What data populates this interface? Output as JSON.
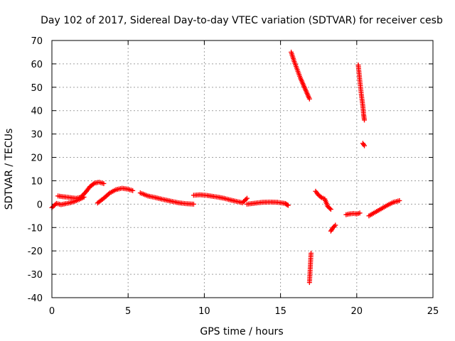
{
  "chart_data": {
    "type": "scatter",
    "title": "Day 102 of 2017, Sidereal Day-to-day VTEC variation (SDTVAR) for receiver cesb",
    "xlabel": "GPS time / hours",
    "ylabel": "SDTVAR / TECUs",
    "xlim": [
      0,
      25
    ],
    "ylim": [
      -40,
      70
    ],
    "x_ticks": [
      0,
      5,
      10,
      15,
      20,
      25
    ],
    "y_ticks": [
      -40,
      -30,
      -20,
      -10,
      0,
      10,
      20,
      30,
      40,
      50,
      60,
      70
    ],
    "grid": true,
    "marker": "plus",
    "color": "#ff0000",
    "segments": [
      {
        "name": "arc-a",
        "x": [
          0.0,
          0.3,
          0.6,
          0.9,
          1.2,
          1.5,
          1.8,
          2.1
        ],
        "y": [
          -1.5,
          0.3,
          -0.2,
          0.2,
          0.6,
          1.2,
          2.0,
          3.0
        ]
      },
      {
        "name": "arc-b",
        "x": [
          0.4,
          0.7,
          1.0,
          1.3,
          1.6,
          1.9,
          2.2,
          2.5,
          2.8,
          3.1,
          3.4
        ],
        "y": [
          3.5,
          3.2,
          3.0,
          2.7,
          2.5,
          3.0,
          5.0,
          7.5,
          9.0,
          9.4,
          8.8
        ]
      },
      {
        "name": "arc-c",
        "x": [
          3.0,
          3.4,
          3.8,
          4.2,
          4.6,
          5.0,
          5.3
        ],
        "y": [
          0.5,
          2.5,
          4.8,
          6.2,
          6.8,
          6.4,
          5.8
        ]
      },
      {
        "name": "arc-d",
        "x": [
          5.8,
          6.3,
          6.8,
          7.3,
          7.8,
          8.3,
          8.8,
          9.3
        ],
        "y": [
          4.8,
          3.5,
          2.8,
          2.0,
          1.3,
          0.6,
          0.2,
          0.0
        ]
      },
      {
        "name": "arc-e",
        "x": [
          9.3,
          9.7,
          10.1,
          10.5,
          10.9,
          11.3,
          11.7,
          12.1,
          12.5,
          12.8
        ],
        "y": [
          3.8,
          4.0,
          3.8,
          3.4,
          3.0,
          2.5,
          1.8,
          1.2,
          0.6,
          2.5
        ]
      },
      {
        "name": "arc-f",
        "x": [
          12.8,
          13.3,
          13.8,
          14.3,
          14.8,
          15.3,
          15.5
        ],
        "y": [
          0.0,
          0.4,
          0.8,
          0.9,
          0.8,
          0.3,
          -0.5
        ]
      },
      {
        "name": "arc-g",
        "x": [
          15.7,
          15.9,
          16.1,
          16.3,
          16.5,
          16.7,
          16.9
        ],
        "y": [
          65.0,
          61.0,
          57.5,
          54.0,
          51.0,
          48.0,
          45.0
        ]
      },
      {
        "name": "arc-h",
        "x": [
          16.9,
          17.0
        ],
        "y": [
          -33.5,
          -21.0
        ]
      },
      {
        "name": "arc-i",
        "x": [
          17.3,
          17.5,
          17.7,
          17.9,
          18.1,
          18.3
        ],
        "y": [
          5.5,
          3.8,
          2.8,
          2.2,
          -1.0,
          -2.2
        ]
      },
      {
        "name": "arc-j",
        "x": [
          18.3,
          18.45,
          18.6
        ],
        "y": [
          -11.5,
          -10.0,
          -9.0
        ]
      },
      {
        "name": "arc-k",
        "x": [
          19.3,
          19.5,
          19.8,
          20.0,
          20.2
        ],
        "y": [
          -4.5,
          -4.2,
          -4.0,
          -4.2,
          -3.8
        ]
      },
      {
        "name": "arc-l",
        "x": [
          20.1,
          20.2,
          20.3,
          20.4,
          20.45,
          20.5
        ],
        "y": [
          59.5,
          53.0,
          47.0,
          42.0,
          38.5,
          36.0
        ]
      },
      {
        "name": "arc-m",
        "x": [
          20.4,
          20.5
        ],
        "y": [
          26.0,
          25.0
        ]
      },
      {
        "name": "arc-n",
        "x": [
          20.8,
          21.2,
          21.6,
          22.0,
          22.4,
          22.8
        ],
        "y": [
          -5.0,
          -3.5,
          -2.0,
          -0.5,
          0.8,
          1.5
        ]
      }
    ]
  }
}
